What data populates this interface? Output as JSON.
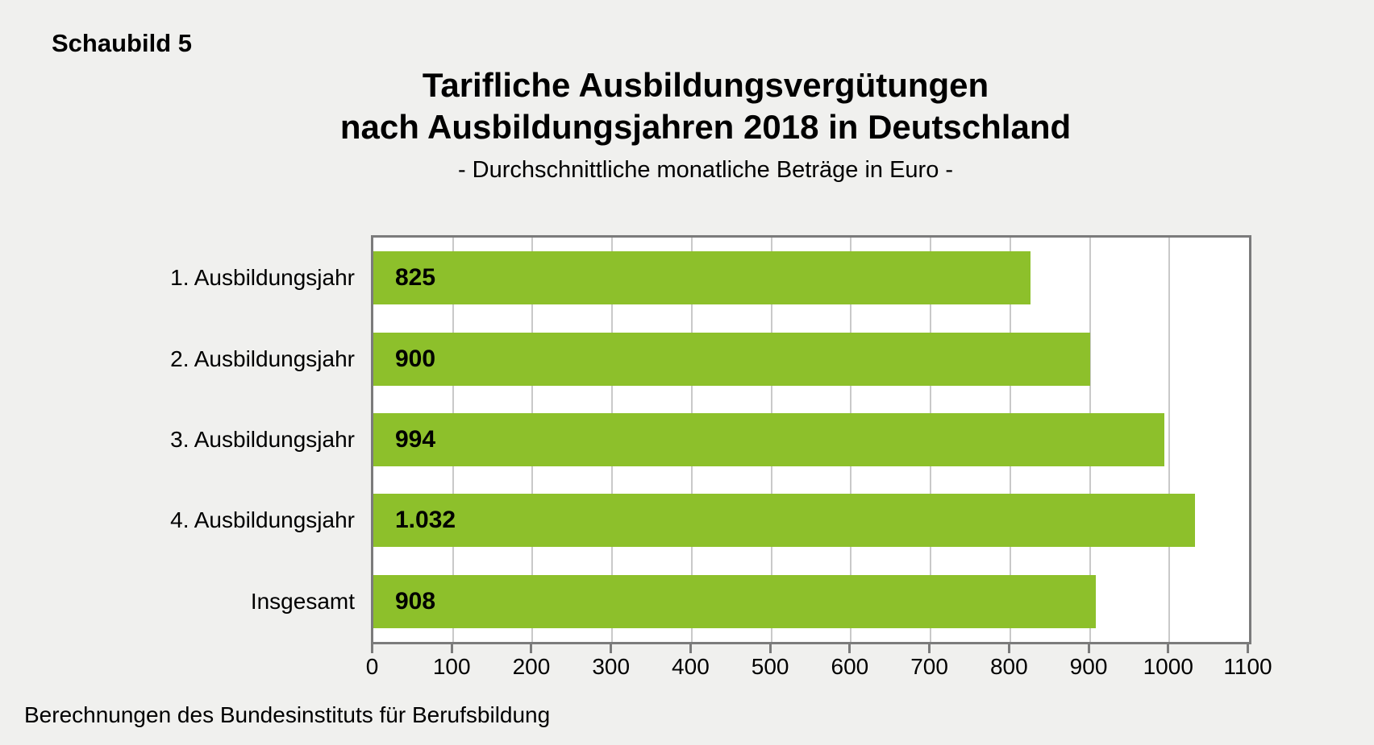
{
  "figure_label": "Schaubild 5",
  "source_note": "Berechnungen des Bundesinstituts für Berufsbildung",
  "chart_data": {
    "type": "bar",
    "orientation": "horizontal",
    "title_lines": [
      "Tarifliche Ausbildungsvergütungen",
      "nach Ausbildungsjahren 2018 in Deutschland"
    ],
    "subtitle": "- Durchschnittliche monatliche Beträge in Euro -",
    "categories": [
      "1. Ausbildungsjahr",
      "2. Ausbildungsjahr",
      "3. Ausbildungsjahr",
      "4. Ausbildungsjahr",
      "Insgesamt"
    ],
    "values": [
      825,
      900,
      994,
      1032,
      908
    ],
    "value_labels": [
      "825",
      "900",
      "994",
      "1.032",
      "908"
    ],
    "xlim": [
      0,
      1100
    ],
    "x_tick_step": 100,
    "x_tick_labels": [
      "0",
      "100",
      "200",
      "300",
      "400",
      "500",
      "600",
      "700",
      "800",
      "900",
      "1000",
      "1100"
    ],
    "grid": true,
    "legend": false,
    "colors": {
      "bar": "#8dc02b",
      "plot_background": "#ffffff",
      "page_background": "#f0f0ee",
      "plot_border": "#7b7b7b",
      "gridline": "#c9c9c9",
      "text": "#000000"
    }
  }
}
